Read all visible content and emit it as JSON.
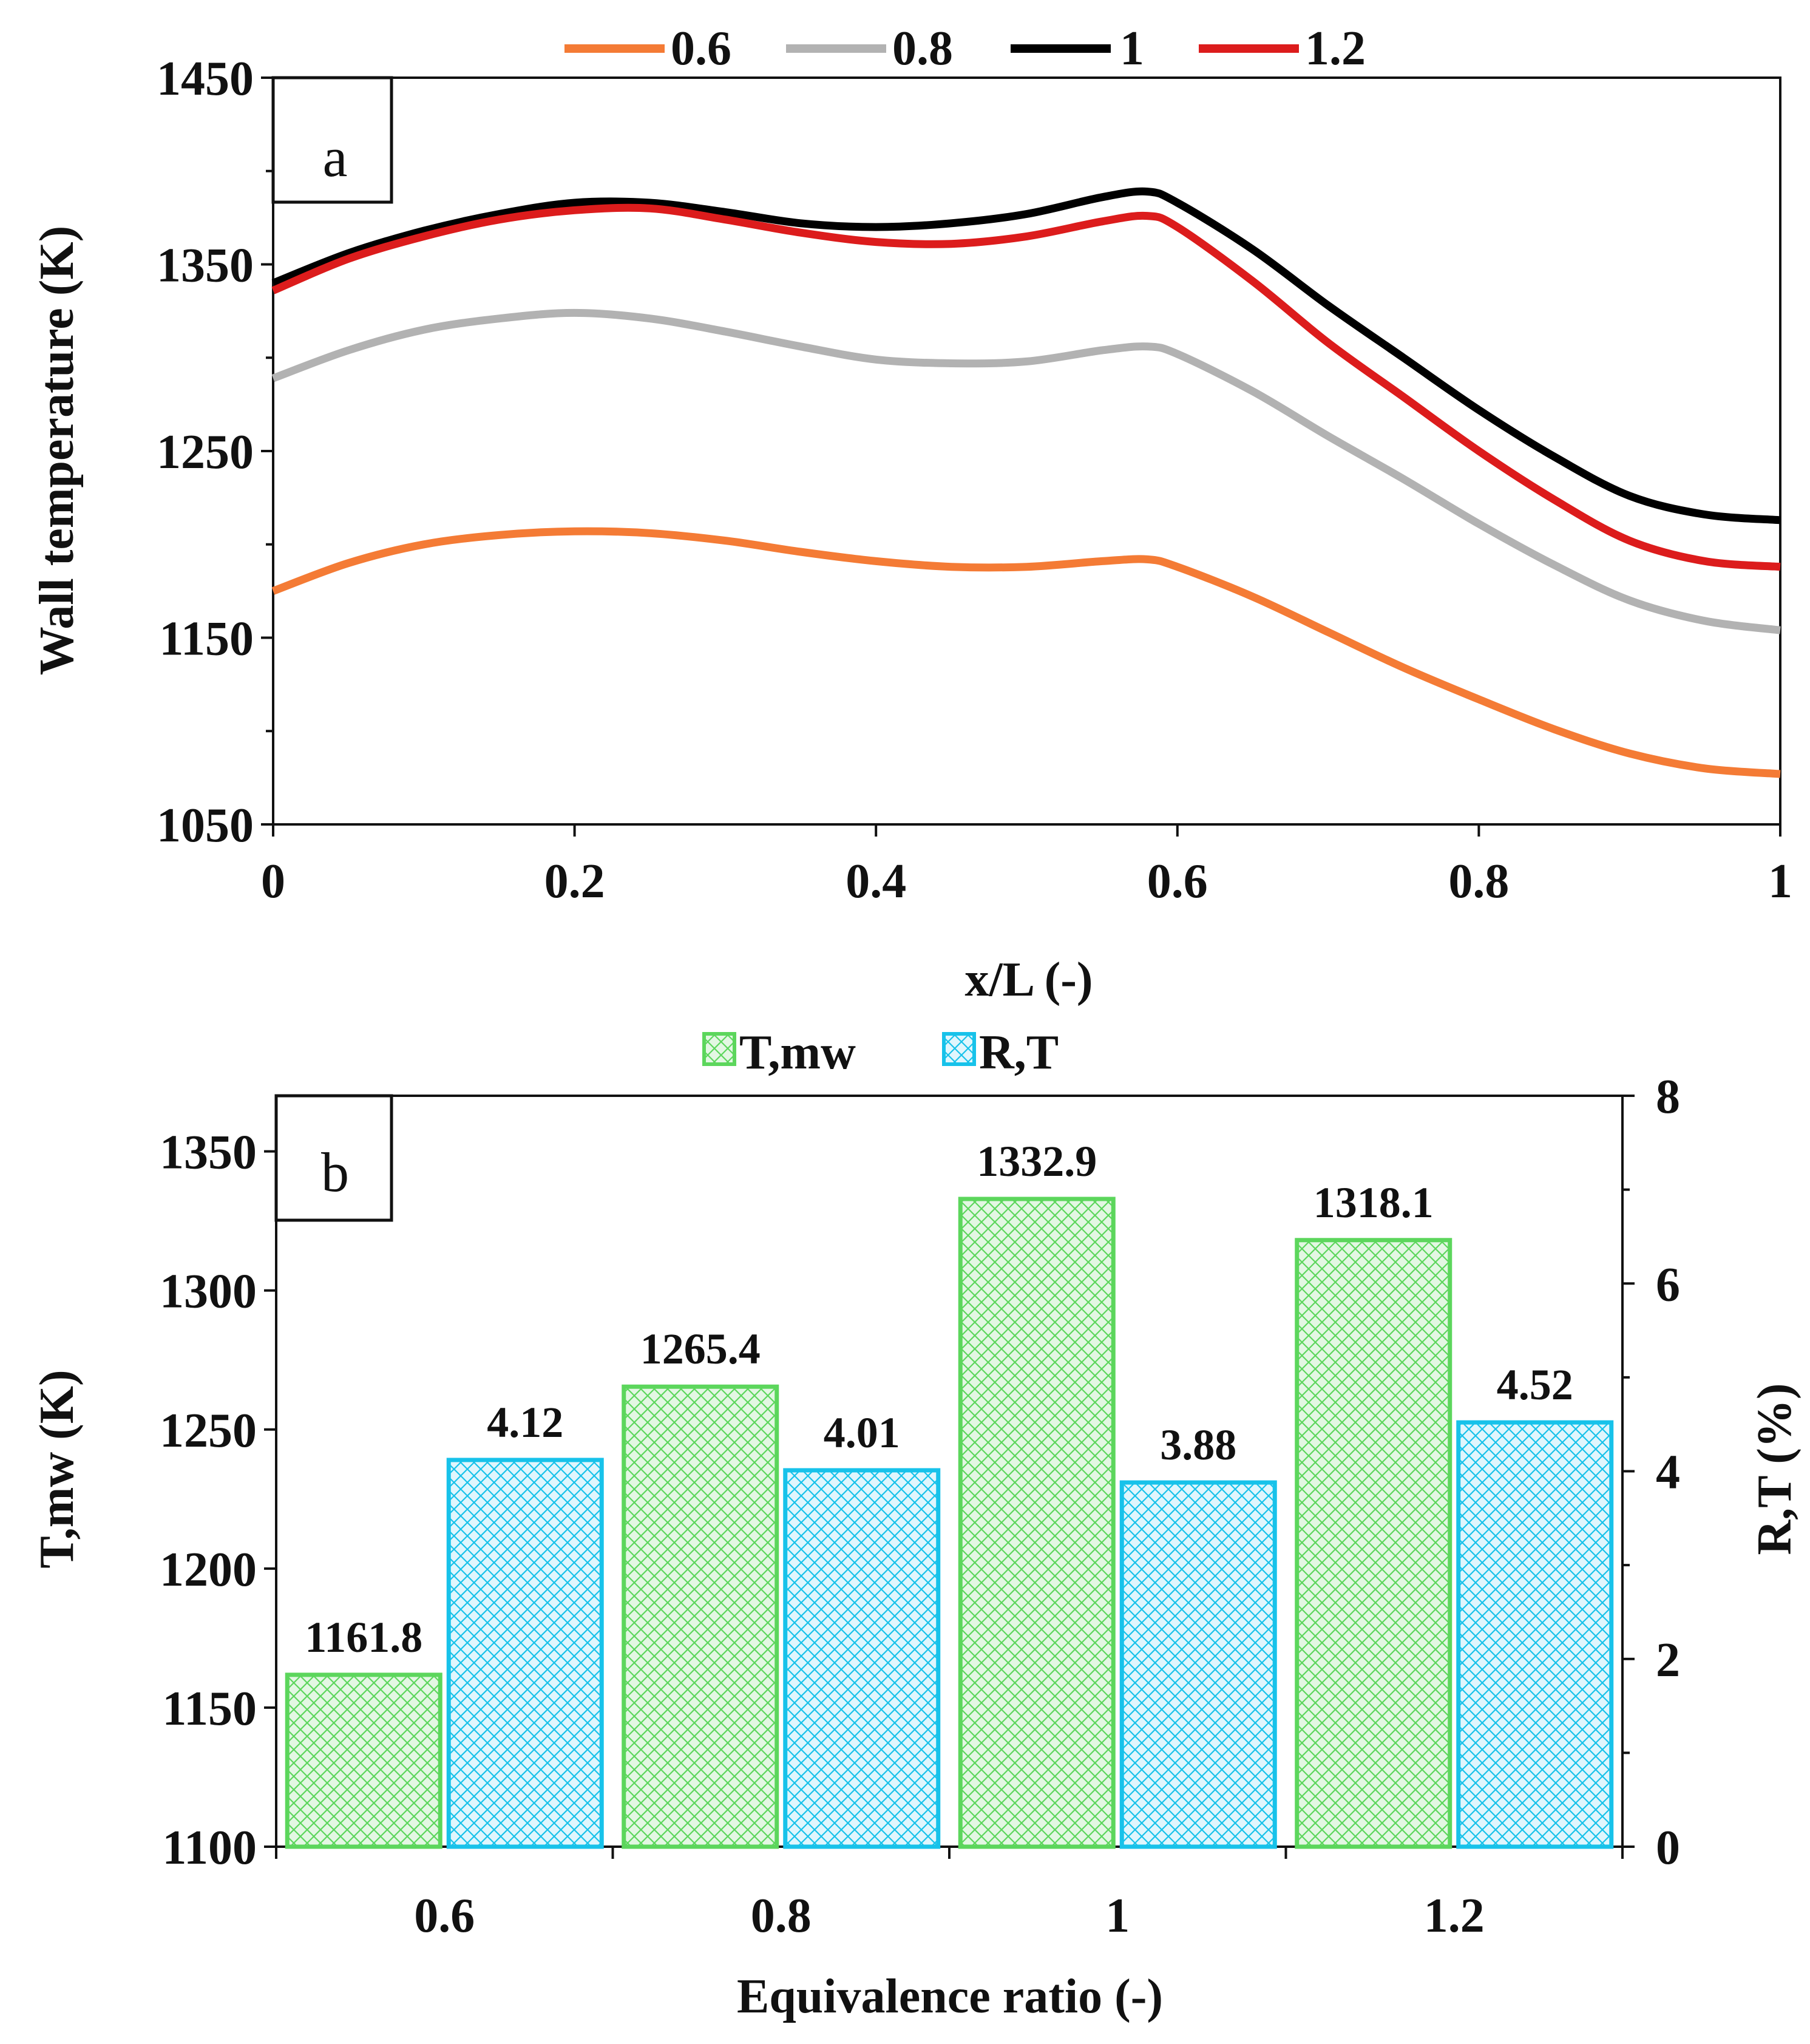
{
  "chart_data": [
    {
      "panel_label": "a",
      "type": "line",
      "title": "",
      "xlabel": "x/L (-)",
      "ylabel": "Wall temperature (K)",
      "xlim": [
        0,
        1
      ],
      "ylim": [
        1050,
        1450
      ],
      "x_ticks": [
        "0",
        "0.2",
        "0.4",
        "0.6",
        "0.8",
        "1"
      ],
      "y_ticks": [
        "1050",
        "1150",
        "1250",
        "1350",
        "1450"
      ],
      "grid": false,
      "legend_position": "top",
      "x": [
        0,
        0.05,
        0.1,
        0.15,
        0.2,
        0.25,
        0.3,
        0.35,
        0.4,
        0.45,
        0.5,
        0.55,
        0.58,
        0.6,
        0.65,
        0.7,
        0.75,
        0.8,
        0.85,
        0.9,
        0.95,
        1.0
      ],
      "series": [
        {
          "name": "0.6",
          "color": "#f47b35",
          "values": [
            1175,
            1190,
            1200,
            1205,
            1207,
            1206,
            1202,
            1196,
            1191,
            1188,
            1188,
            1191,
            1192,
            1188,
            1172,
            1153,
            1134,
            1117,
            1101,
            1088,
            1080,
            1077
          ]
        },
        {
          "name": "0.8",
          "color": "#b2b2b2",
          "values": [
            1289,
            1304,
            1315,
            1321,
            1324,
            1321,
            1314,
            1306,
            1299,
            1297,
            1298,
            1304,
            1306,
            1302,
            1282,
            1258,
            1235,
            1211,
            1189,
            1170,
            1159,
            1154
          ]
        },
        {
          "name": "1",
          "color": "#000000",
          "values": [
            1340,
            1356,
            1368,
            1377,
            1383,
            1383,
            1378,
            1372,
            1370,
            1372,
            1377,
            1386,
            1389,
            1383,
            1358,
            1328,
            1300,
            1272,
            1247,
            1226,
            1216,
            1213
          ]
        },
        {
          "name": "1.2",
          "color": "#dc1c1c",
          "values": [
            1336,
            1353,
            1365,
            1374,
            1379,
            1380,
            1374,
            1367,
            1362,
            1361,
            1365,
            1373,
            1376,
            1370,
            1341,
            1308,
            1279,
            1250,
            1224,
            1202,
            1191,
            1188
          ]
        }
      ]
    },
    {
      "panel_label": "b",
      "type": "bar",
      "title": "",
      "xlabel": "Equivalence ratio (-)",
      "ylabel": "T,mw (K)",
      "y2label": "R,T (%)",
      "categories": [
        "0.6",
        "0.8",
        "1",
        "1.2"
      ],
      "ylim": [
        1100,
        1370
      ],
      "y_ticks": [
        "1100",
        "1150",
        "1200",
        "1250",
        "1300",
        "1350"
      ],
      "y2lim": [
        0,
        8
      ],
      "y2_ticks": [
        "0",
        "2",
        "4",
        "6",
        "8"
      ],
      "grid": false,
      "legend_position": "top",
      "series": [
        {
          "name": "T,mw",
          "axis": "left",
          "color": "#5cd65c",
          "fill": "#e3f7e3",
          "values": [
            1161.8,
            1265.4,
            1332.9,
            1318.1
          ],
          "labels": [
            "1161.8",
            "1265.4",
            "1332.9",
            "1318.1"
          ]
        },
        {
          "name": "R,T",
          "axis": "right",
          "color": "#17c2ea",
          "fill": "#e0f6fd",
          "values": [
            4.12,
            4.01,
            3.88,
            4.52
          ],
          "labels": [
            "4.12",
            "4.01",
            "3.88",
            "4.52"
          ]
        }
      ]
    }
  ]
}
